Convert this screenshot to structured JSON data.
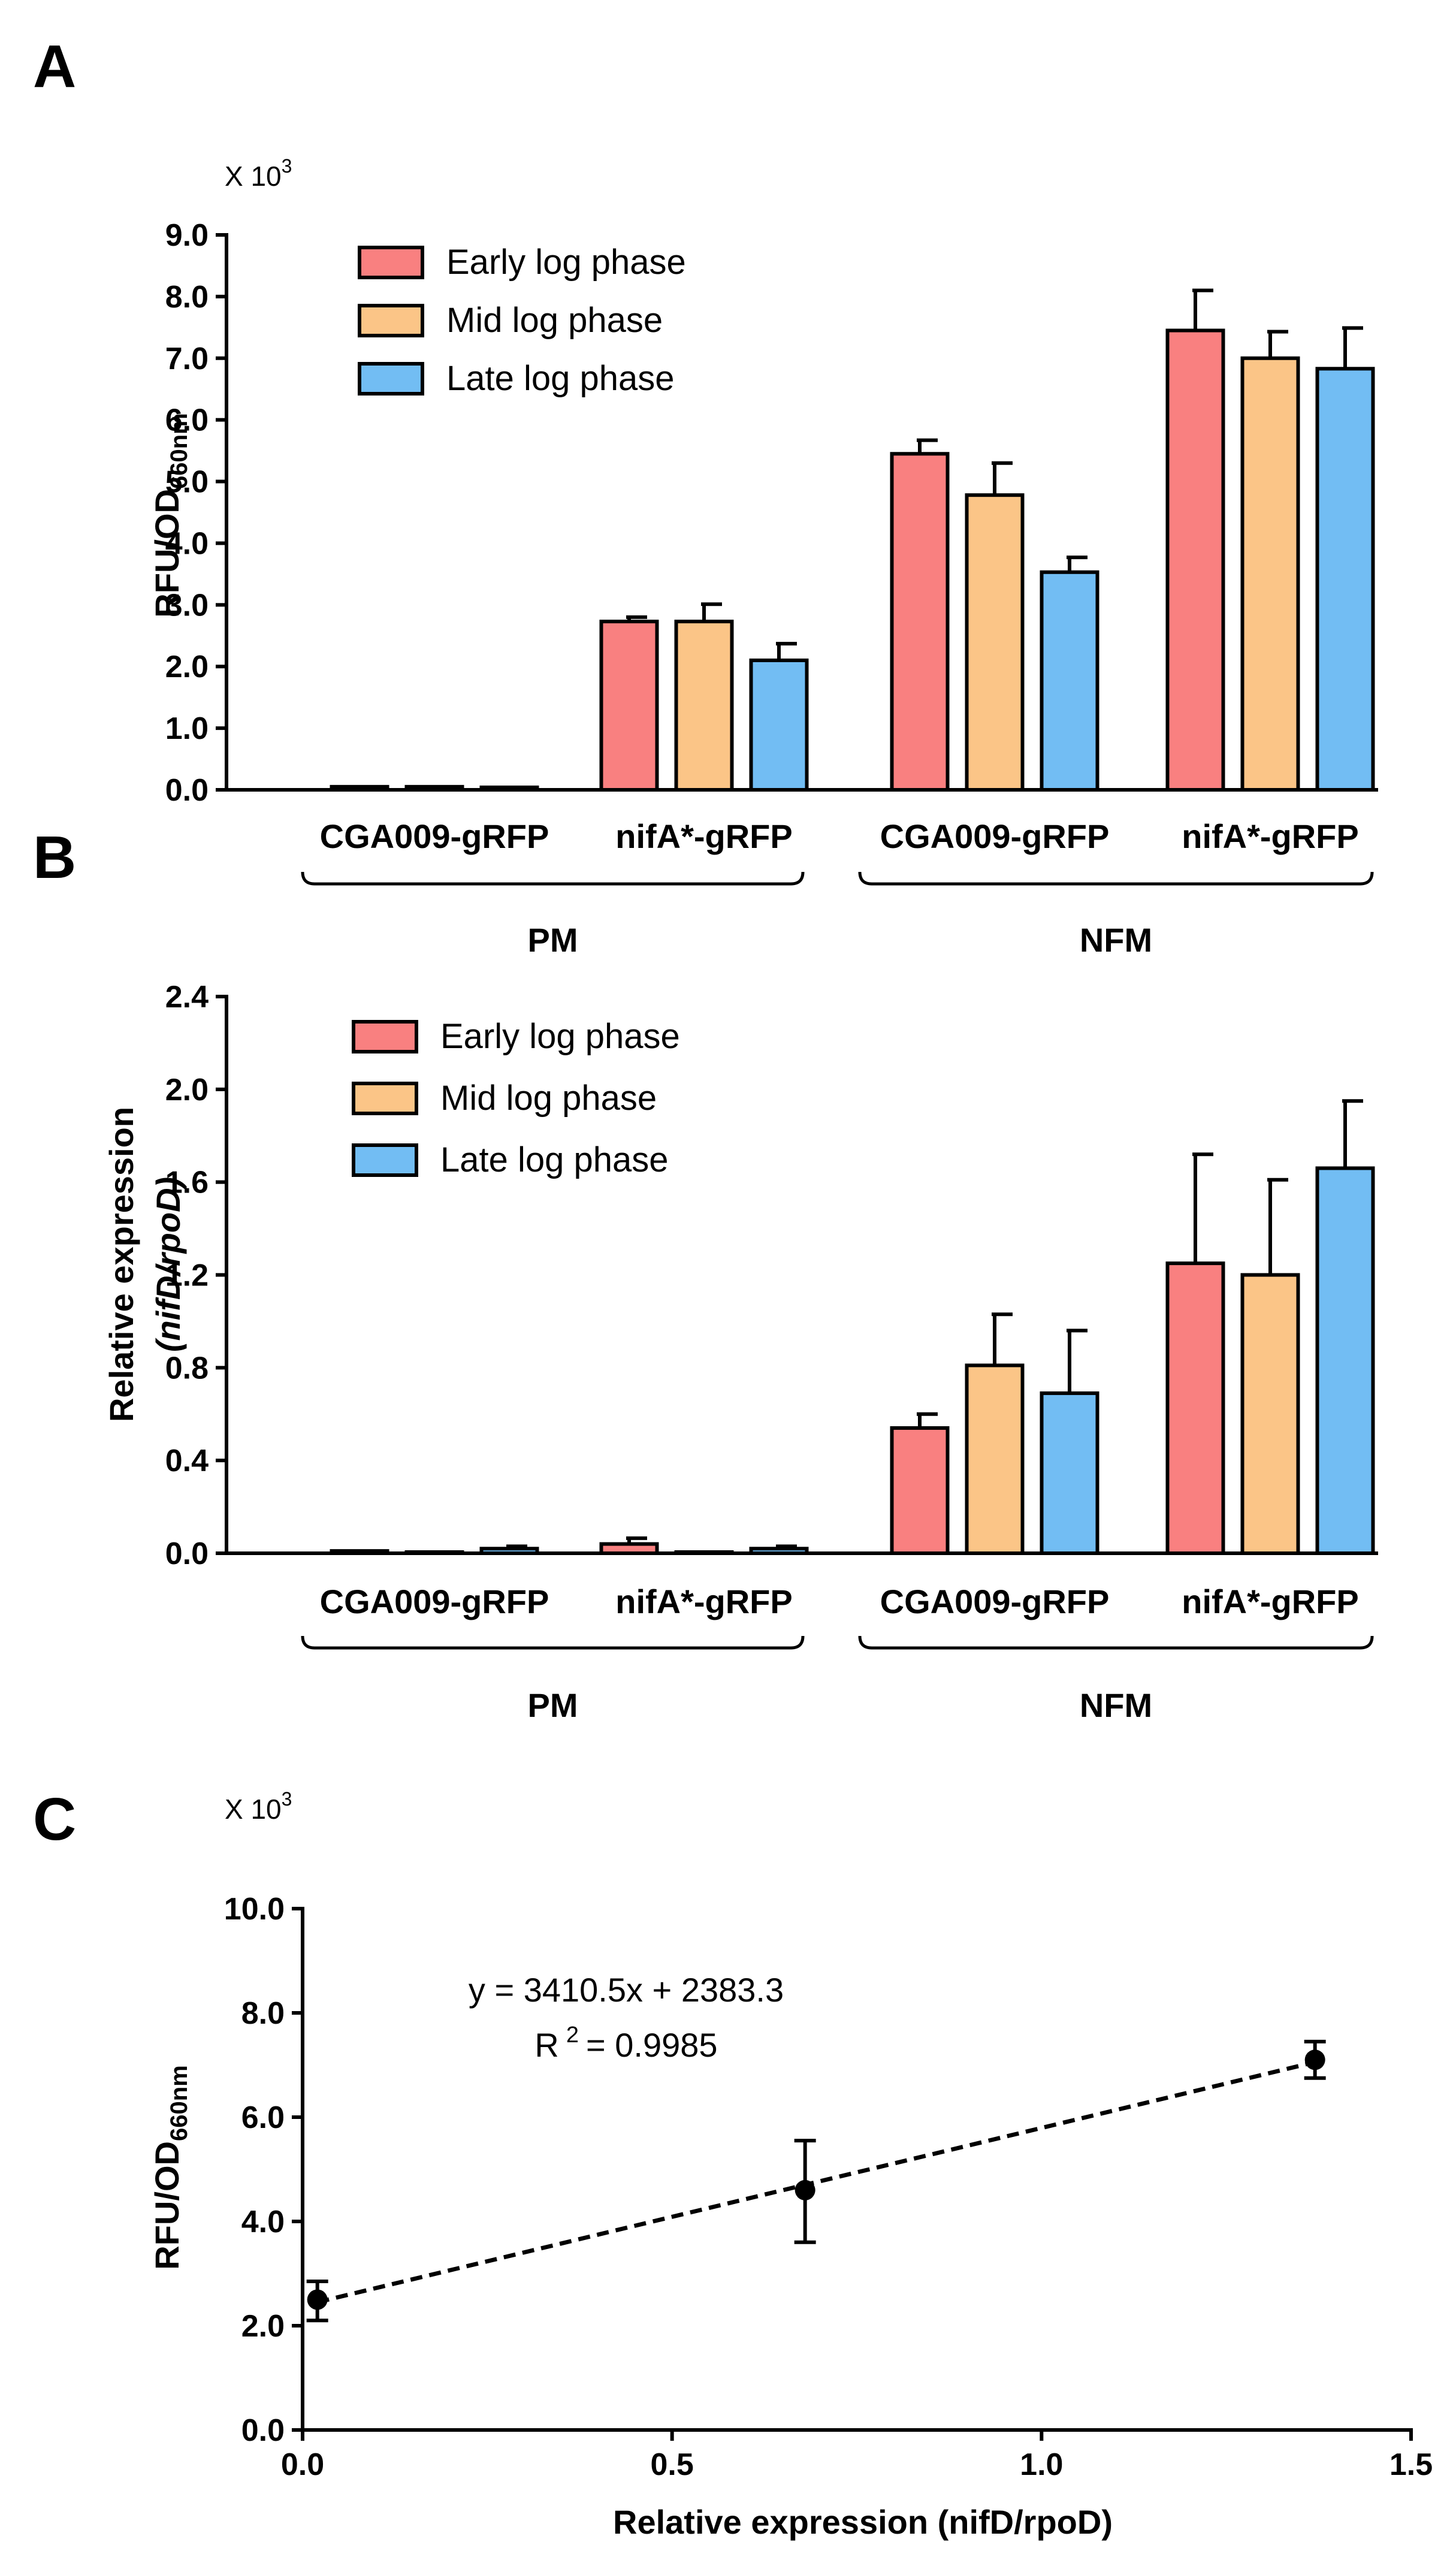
{
  "panels": {
    "a": {
      "letter": "A",
      "multiplier": "X 10",
      "multiplier_exp": "3",
      "ylabel_main": "RFU/OD",
      "ylabel_sub": "660nm"
    },
    "b": {
      "letter": "B",
      "ylabel_line1": "Relative expression",
      "ylabel_line2": "(nifD/rpoD)"
    },
    "c": {
      "letter": "C",
      "multiplier": "X 10",
      "multiplier_exp": "3",
      "ylabel_main": "RFU/OD",
      "ylabel_sub": "660nm",
      "xlabel": "Relative expression (nifD/rpoD)",
      "equation": "y = 3410.5x + 2383.3",
      "r2_prefix": "R",
      "r2_exp": "2",
      "r2_value": "= 0.9985"
    }
  },
  "colors": {
    "early": "#F98080",
    "mid": "#FBC587",
    "late": "#72BDF3",
    "axis": "#000000"
  },
  "chart_data": [
    {
      "type": "bar",
      "ylabel": "RFU/OD660nm",
      "ylim": [
        0,
        9.0
      ],
      "y_ticks": [
        "0.0",
        "1.0",
        "2.0",
        "3.0",
        "4.0",
        "5.0",
        "6.0",
        "7.0",
        "8.0",
        "9.0"
      ],
      "categories": [
        "CGA009-gRFP",
        "nifA*-gRFP",
        "CGA009-gRFP",
        "nifA*-gRFP"
      ],
      "groups": [
        {
          "label": "PM",
          "categories": [
            0,
            1
          ]
        },
        {
          "label": "NFM",
          "categories": [
            2,
            3
          ]
        }
      ],
      "legend_position": "top-left",
      "series": [
        {
          "name": "Early log phase",
          "color_key": "early",
          "values": [
            0.05,
            2.73,
            5.45,
            7.45
          ],
          "errors": [
            0.0,
            0.07,
            0.22,
            0.65
          ]
        },
        {
          "name": "Mid log phase",
          "color_key": "mid",
          "values": [
            0.05,
            2.73,
            4.78,
            7.0
          ],
          "errors": [
            0.0,
            0.28,
            0.52,
            0.43
          ]
        },
        {
          "name": "Late log phase",
          "color_key": "late",
          "values": [
            0.04,
            2.1,
            3.53,
            6.83
          ],
          "errors": [
            0.0,
            0.27,
            0.24,
            0.66
          ]
        }
      ]
    },
    {
      "type": "bar",
      "ylabel": "Relative expression (nifD/rpoD)",
      "ylim": [
        0,
        2.4
      ],
      "y_ticks": [
        "0.0",
        "0.4",
        "0.8",
        "1.2",
        "1.6",
        "2.0",
        "2.4"
      ],
      "categories": [
        "CGA009-gRFP",
        "nifA*-gRFP",
        "CGA009-gRFP",
        "nifA*-gRFP"
      ],
      "groups": [
        {
          "label": "PM",
          "categories": [
            0,
            1
          ]
        },
        {
          "label": "NFM",
          "categories": [
            2,
            3
          ]
        }
      ],
      "legend_position": "top-left",
      "series": [
        {
          "name": "Early log phase",
          "color_key": "early",
          "values": [
            0.01,
            0.04,
            0.54,
            1.25
          ],
          "errors": [
            0.0,
            0.025,
            0.06,
            0.47
          ]
        },
        {
          "name": "Mid log phase",
          "color_key": "mid",
          "values": [
            0.003,
            0.003,
            0.81,
            1.2
          ],
          "errors": [
            0.0,
            0.0,
            0.22,
            0.41
          ]
        },
        {
          "name": "Late log phase",
          "color_key": "late",
          "values": [
            0.02,
            0.02,
            0.69,
            1.66
          ],
          "errors": [
            0.01,
            0.01,
            0.27,
            0.29
          ]
        }
      ]
    },
    {
      "type": "scatter",
      "xlabel": "Relative expression (nifD/rpoD)",
      "ylabel": "RFU/OD660nm",
      "xlim": [
        0.0,
        1.5
      ],
      "ylim": [
        0,
        10.0
      ],
      "x_ticks": [
        "0.0",
        "0.5",
        "1.0",
        "1.5"
      ],
      "y_ticks": [
        "0.0",
        "2.0",
        "4.0",
        "6.0",
        "8.0",
        "10.0"
      ],
      "points": [
        {
          "x": 0.02,
          "y": 2.5,
          "err_low": 2.1,
          "err_high": 2.85
        },
        {
          "x": 0.68,
          "y": 4.6,
          "err_low": 3.6,
          "err_high": 5.55
        },
        {
          "x": 1.37,
          "y": 7.1,
          "err_low": 6.75,
          "err_high": 7.45
        }
      ],
      "fit": {
        "equation": "y = 3410.5x + 2383.3",
        "r_squared": 0.9985,
        "style": "dashed"
      }
    }
  ]
}
